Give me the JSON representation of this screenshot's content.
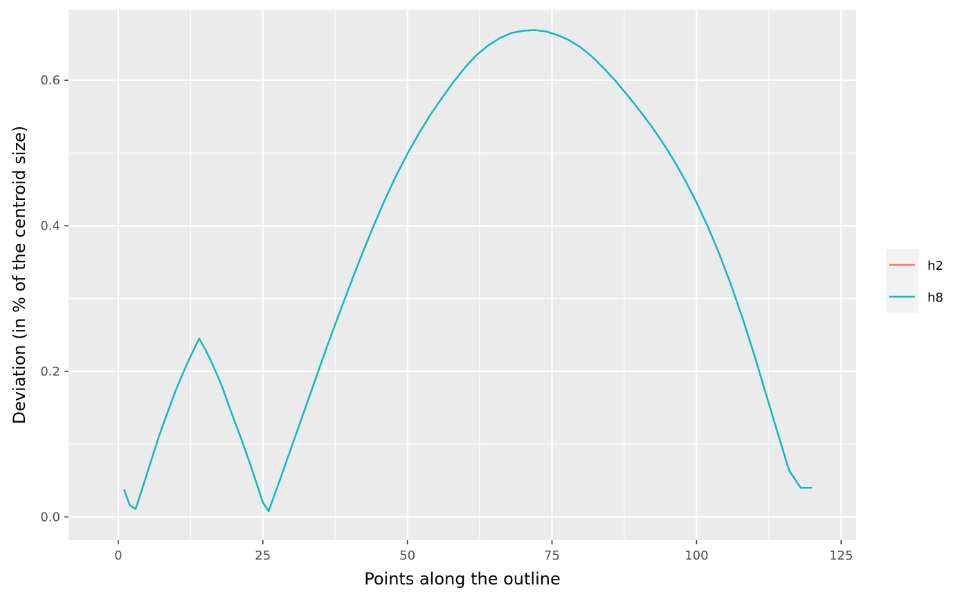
{
  "chart_data": {
    "type": "line",
    "title": "",
    "xlabel": "Points along the outline",
    "ylabel": "Deviation (in % of the centroid size)",
    "xlim": [
      -8.6,
      127.6
    ],
    "ylim": [
      -0.032,
      0.697
    ],
    "x_ticks": [
      0,
      25,
      50,
      75,
      100,
      125
    ],
    "x_tick_labels": [
      "0",
      "25",
      "50",
      "75",
      "100",
      "125"
    ],
    "y_ticks": [
      0.0,
      0.2,
      0.4,
      0.6
    ],
    "y_tick_labels": [
      "0.0",
      "0.2",
      "0.4",
      "0.6"
    ],
    "grid": true,
    "legend": {
      "position": "right"
    },
    "series": [
      {
        "name": "h2",
        "color": "#F8766D",
        "x": [
          1,
          2,
          3,
          4,
          5,
          6,
          7,
          8,
          9,
          10,
          11,
          12,
          13,
          14,
          15,
          16,
          17,
          18,
          19,
          20,
          21,
          22,
          23,
          24,
          25,
          26,
          28,
          30,
          32,
          34,
          36,
          38,
          40,
          42,
          44,
          46,
          48,
          50,
          52,
          54,
          56,
          58,
          60,
          62,
          64,
          66,
          68,
          70,
          72,
          74,
          76,
          78,
          80,
          82,
          84,
          86,
          88,
          90,
          92,
          94,
          96,
          98,
          100,
          102,
          104,
          106,
          108,
          110,
          112,
          114,
          116,
          118,
          120
        ],
        "y": [
          0.038,
          0.016,
          0.011,
          0.035,
          0.06,
          0.085,
          0.11,
          0.132,
          0.154,
          0.175,
          0.194,
          0.212,
          0.229,
          0.245,
          0.231,
          0.215,
          0.197,
          0.178,
          0.156,
          0.134,
          0.113,
          0.091,
          0.068,
          0.044,
          0.02,
          0.008,
          0.052,
          0.097,
          0.142,
          0.187,
          0.232,
          0.275,
          0.317,
          0.358,
          0.397,
          0.434,
          0.468,
          0.499,
          0.527,
          0.553,
          0.576,
          0.598,
          0.618,
          0.635,
          0.648,
          0.658,
          0.665,
          0.668,
          0.669,
          0.667,
          0.662,
          0.655,
          0.645,
          0.632,
          0.616,
          0.599,
          0.58,
          0.56,
          0.539,
          0.516,
          0.491,
          0.463,
          0.432,
          0.398,
          0.36,
          0.318,
          0.272,
          0.222,
          0.169,
          0.116,
          0.064,
          0.04,
          0.04
        ]
      },
      {
        "name": "h8",
        "color": "#00BFC4",
        "x": [
          1,
          2,
          3,
          4,
          5,
          6,
          7,
          8,
          9,
          10,
          11,
          12,
          13,
          14,
          15,
          16,
          17,
          18,
          19,
          20,
          21,
          22,
          23,
          24,
          25,
          26,
          28,
          30,
          32,
          34,
          36,
          38,
          40,
          42,
          44,
          46,
          48,
          50,
          52,
          54,
          56,
          58,
          60,
          62,
          64,
          66,
          68,
          70,
          72,
          74,
          76,
          78,
          80,
          82,
          84,
          86,
          88,
          90,
          92,
          94,
          96,
          98,
          100,
          102,
          104,
          106,
          108,
          110,
          112,
          114,
          116,
          118,
          120
        ],
        "y": [
          0.038,
          0.016,
          0.011,
          0.035,
          0.06,
          0.085,
          0.11,
          0.132,
          0.154,
          0.175,
          0.194,
          0.212,
          0.229,
          0.245,
          0.231,
          0.215,
          0.197,
          0.178,
          0.156,
          0.134,
          0.113,
          0.091,
          0.068,
          0.044,
          0.02,
          0.008,
          0.052,
          0.097,
          0.142,
          0.187,
          0.232,
          0.275,
          0.317,
          0.358,
          0.397,
          0.434,
          0.468,
          0.499,
          0.527,
          0.553,
          0.576,
          0.598,
          0.618,
          0.635,
          0.648,
          0.658,
          0.665,
          0.668,
          0.669,
          0.667,
          0.662,
          0.655,
          0.645,
          0.632,
          0.616,
          0.599,
          0.58,
          0.56,
          0.539,
          0.516,
          0.491,
          0.463,
          0.432,
          0.398,
          0.36,
          0.318,
          0.272,
          0.222,
          0.169,
          0.116,
          0.064,
          0.04,
          0.04
        ]
      }
    ]
  }
}
